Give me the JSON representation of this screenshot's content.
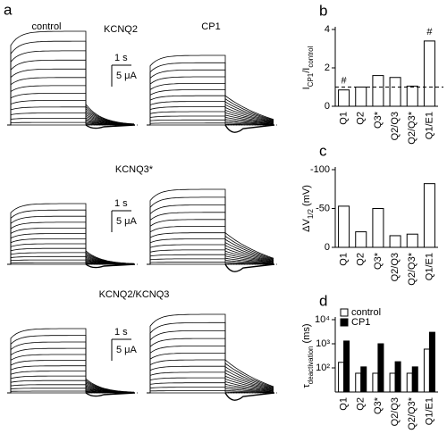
{
  "panel_a": {
    "label": "a",
    "columns": [
      "control",
      "CP1"
    ],
    "rows": [
      {
        "title": "KCNQ2",
        "scale_time": "1 s",
        "scale_current": "5 μA"
      },
      {
        "title": "KCNQ3*",
        "scale_time": "1 s",
        "scale_current": "5 μA"
      },
      {
        "title": "KCNQ2/KCNQ3",
        "scale_time": "1 s",
        "scale_current": "5 μA"
      }
    ]
  },
  "chart_data": [
    {
      "type": "bar",
      "label": "b",
      "ylabel": [
        {
          "text": "I"
        },
        {
          "text": "CP1",
          "sub": true
        },
        {
          "text": "/I"
        },
        {
          "text": "control",
          "sub": true
        }
      ],
      "categories": [
        "Q1",
        "Q2",
        "Q3*",
        "Q2/Q3",
        "Q2/Q3*",
        "Q1/E1"
      ],
      "series": [
        {
          "color": "#ffffff",
          "values": [
            0.85,
            1.0,
            1.6,
            1.5,
            1.05,
            3.4
          ]
        }
      ],
      "annotations": [
        {
          "category": 0,
          "text": "#"
        },
        {
          "category": 5,
          "text": "#"
        }
      ],
      "reference_line": 1,
      "ylim": [
        0,
        4
      ],
      "yticks": [
        0,
        2,
        4
      ]
    },
    {
      "type": "bar",
      "label": "c",
      "ylabel": [
        {
          "text": "ΔV"
        },
        {
          "text": "1/2",
          "sub": true
        },
        {
          "text": " (mV)"
        }
      ],
      "categories": [
        "Q1",
        "Q2",
        "Q3*",
        "Q2/Q3",
        "Q2/Q3*",
        "Q1/E1"
      ],
      "series": [
        {
          "color": "#ffffff",
          "values": [
            -53,
            -20,
            -50,
            -15,
            -17,
            -82
          ]
        }
      ],
      "ylim": [
        0,
        -100
      ],
      "yticks": [
        0,
        -50,
        -100
      ]
    },
    {
      "type": "bar",
      "label": "d",
      "log_scale": true,
      "legend": "top-left",
      "ylabel": [
        {
          "text": "τ"
        },
        {
          "text": "deactivation",
          "sub": true
        },
        {
          "text": " (ms)"
        }
      ],
      "categories": [
        "Q1",
        "Q2",
        "Q3*",
        "Q2/Q3",
        "Q2/Q3*",
        "Q1/E1"
      ],
      "series": [
        {
          "name": "control",
          "color": "#ffffff",
          "values": [
            170,
            60,
            60,
            60,
            60,
            600
          ]
        },
        {
          "name": "CP1",
          "color": "#000000",
          "values": [
            1300,
            110,
            1000,
            180,
            110,
            3000
          ]
        }
      ],
      "ylim": [
        10,
        10000
      ],
      "yticks": [
        {
          "value": 100,
          "label": "10²"
        },
        {
          "value": 1000,
          "label": "10³"
        },
        {
          "value": 10000,
          "label": "10⁴"
        }
      ]
    }
  ]
}
